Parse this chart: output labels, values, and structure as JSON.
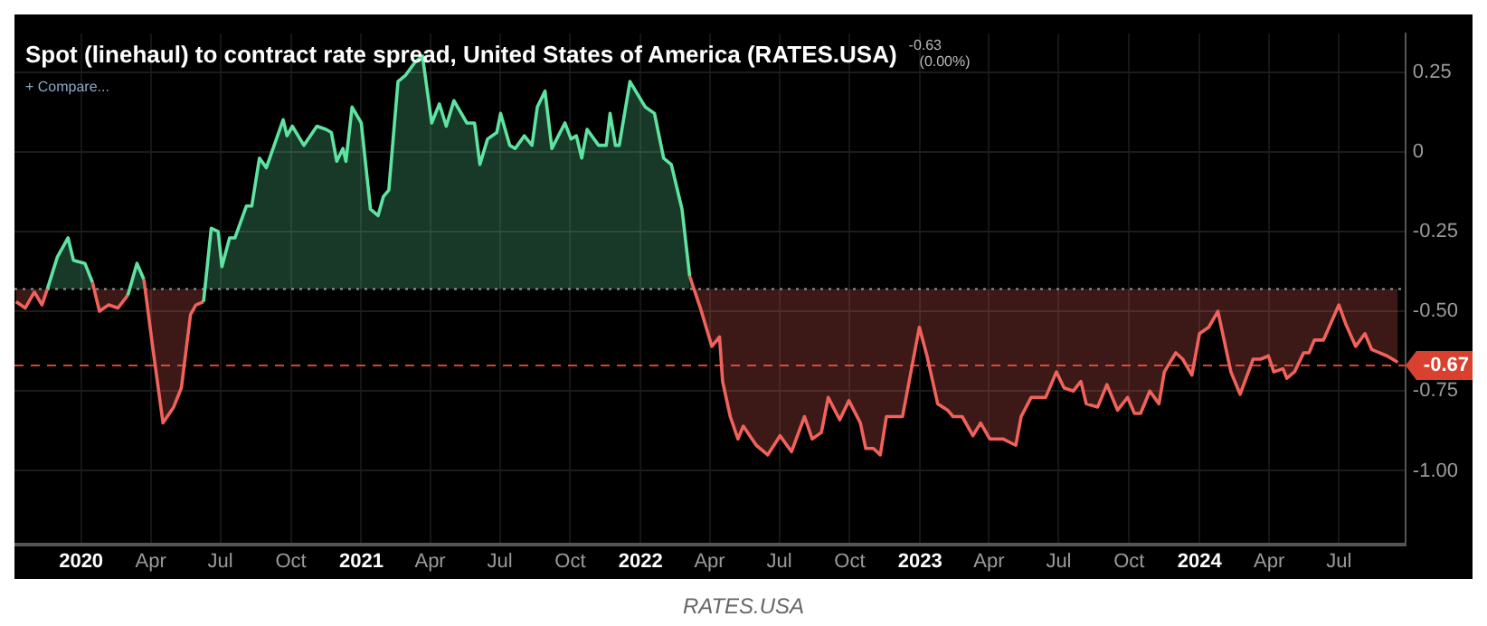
{
  "chart_data": {
    "type": "area",
    "title": "Spot (linehaul) to contract rate spread, United States of America (RATES.USA)",
    "annotations": [
      "-0.63",
      "(0.00%)",
      "+ Compare...",
      "RATES.USA"
    ],
    "x": [
      "2019-10-08",
      "2019-10-20",
      "2019-11-01",
      "2019-11-11",
      "2019-11-18",
      "2019-12-01",
      "2019-12-15",
      "2019-12-22",
      "2020-01-06",
      "2020-01-16",
      "2020-01-25",
      "2020-02-06",
      "2020-02-18",
      "2020-03-02",
      "2020-03-14",
      "2020-03-23",
      "2020-04-04",
      "2020-04-17",
      "2020-05-01",
      "2020-05-11",
      "2020-05-23",
      "2020-05-30",
      "2020-06-09",
      "2020-06-19",
      "2020-06-28",
      "2020-07-03",
      "2020-07-13",
      "2020-07-20",
      "2020-08-04",
      "2020-08-11",
      "2020-08-21",
      "2020-08-30",
      "2020-09-21",
      "2020-09-26",
      "2020-10-03",
      "2020-10-18",
      "2020-11-04",
      "2020-11-16",
      "2020-11-23",
      "2020-11-30",
      "2020-12-08",
      "2020-12-12",
      "2020-12-20",
      "2021-01-01",
      "2021-01-13",
      "2021-01-23",
      "2021-01-30",
      "2021-02-06",
      "2021-02-18",
      "2021-02-28",
      "2021-03-12",
      "2021-03-22",
      "2021-04-03",
      "2021-04-13",
      "2021-04-22",
      "2021-05-02",
      "2021-05-19",
      "2021-05-29",
      "2021-06-05",
      "2021-06-15",
      "2021-06-27",
      "2021-07-02",
      "2021-07-14",
      "2021-07-21",
      "2021-08-02",
      "2021-08-12",
      "2021-08-19",
      "2021-08-29",
      "2021-09-07",
      "2021-09-24",
      "2021-10-02",
      "2021-10-09",
      "2021-10-16",
      "2021-10-23",
      "2021-11-07",
      "2021-11-17",
      "2021-11-22",
      "2021-11-29",
      "2021-12-04",
      "2021-12-18",
      "2022-01-07",
      "2022-01-19",
      "2022-01-31",
      "2022-02-10",
      "2022-02-24",
      "2022-03-06",
      "2022-03-20",
      "2022-04-04",
      "2022-04-14",
      "2022-04-18",
      "2022-04-28",
      "2022-05-08",
      "2022-05-15",
      "2022-06-01",
      "2022-06-16",
      "2022-07-02",
      "2022-07-17",
      "2022-08-03",
      "2022-08-13",
      "2022-08-25",
      "2022-09-03",
      "2022-09-18",
      "2022-09-30",
      "2022-10-15",
      "2022-10-22",
      "2022-11-01",
      "2022-11-10",
      "2022-11-18",
      "2022-12-09",
      "2022-12-31",
      "2023-01-10",
      "2023-01-24",
      "2023-02-06",
      "2023-02-13",
      "2023-02-25",
      "2023-03-11",
      "2023-03-21",
      "2023-04-02",
      "2023-04-19",
      "2023-05-06",
      "2023-05-13",
      "2023-05-26",
      "2023-06-14",
      "2023-06-28",
      "2023-07-08",
      "2023-07-20",
      "2023-07-30",
      "2023-08-06",
      "2023-08-21",
      "2023-09-02",
      "2023-09-16",
      "2023-09-29",
      "2023-10-08",
      "2023-10-16",
      "2023-10-28",
      "2023-11-09",
      "2023-11-16",
      "2023-12-01",
      "2023-12-10",
      "2023-12-22",
      "2024-01-01",
      "2024-01-13",
      "2024-01-25",
      "2024-02-11",
      "2024-02-23",
      "2024-03-11",
      "2024-03-21",
      "2024-03-31",
      "2024-04-07",
      "2024-04-19",
      "2024-04-24",
      "2024-05-04",
      "2024-05-16",
      "2024-05-23",
      "2024-05-30",
      "2024-06-11",
      "2024-07-01",
      "2024-07-10",
      "2024-07-23",
      "2024-08-04",
      "2024-08-13",
      "2024-09-02",
      "2024-09-16"
    ],
    "series": [
      {
        "values": [
          -0.47,
          -0.49,
          -0.44,
          -0.48,
          -0.43,
          -0.33,
          -0.27,
          -0.34,
          -0.35,
          -0.41,
          -0.5,
          -0.48,
          -0.49,
          -0.45,
          -0.35,
          -0.4,
          -0.62,
          -0.85,
          -0.8,
          -0.74,
          -0.51,
          -0.48,
          -0.47,
          -0.24,
          -0.25,
          -0.36,
          -0.27,
          -0.27,
          -0.17,
          -0.17,
          -0.02,
          -0.05,
          0.1,
          0.05,
          0.08,
          0.02,
          0.08,
          0.07,
          0.06,
          -0.03,
          0.01,
          -0.03,
          0.14,
          0.09,
          -0.18,
          -0.2,
          -0.14,
          -0.12,
          0.22,
          0.24,
          0.28,
          0.3,
          0.09,
          0.15,
          0.08,
          0.16,
          0.09,
          0.09,
          -0.04,
          0.04,
          0.06,
          0.12,
          0.02,
          0.01,
          0.05,
          0.02,
          0.14,
          0.19,
          0.01,
          0.09,
          0.04,
          0.05,
          -0.02,
          0.07,
          0.02,
          0.02,
          0.12,
          0.02,
          0.02,
          0.22,
          0.14,
          0.12,
          -0.02,
          -0.04,
          -0.18,
          -0.39,
          -0.49,
          -0.61,
          -0.58,
          -0.72,
          -0.83,
          -0.9,
          -0.86,
          -0.92,
          -0.95,
          -0.89,
          -0.94,
          -0.83,
          -0.9,
          -0.88,
          -0.77,
          -0.84,
          -0.78,
          -0.85,
          -0.93,
          -0.93,
          -0.95,
          -0.83,
          -0.83,
          -0.55,
          -0.64,
          -0.79,
          -0.81,
          -0.83,
          -0.83,
          -0.89,
          -0.85,
          -0.9,
          -0.9,
          -0.92,
          -0.83,
          -0.77,
          -0.77,
          -0.69,
          -0.74,
          -0.75,
          -0.72,
          -0.79,
          -0.8,
          -0.73,
          -0.81,
          -0.77,
          -0.82,
          -0.82,
          -0.75,
          -0.79,
          -0.69,
          -0.63,
          -0.65,
          -0.7,
          -0.57,
          -0.55,
          -0.5,
          -0.69,
          -0.76,
          -0.65,
          -0.65,
          -0.64,
          -0.69,
          -0.68,
          -0.71,
          -0.69,
          -0.63,
          -0.63,
          -0.59,
          -0.59,
          -0.48,
          -0.54,
          -0.61,
          -0.57,
          -0.62,
          -0.64,
          -0.66
        ],
        "colors": [
          "#f0625a",
          "#f0625a",
          "#f0625a",
          "#f0625a",
          "#f0625a",
          "#5fe3a1",
          "#5fe3a1",
          "#5fe3a1",
          "#5fe3a1",
          "#5fe3a1",
          "#f0625a",
          "#f0625a",
          "#f0625a",
          "#f0625a",
          "#5fe3a1",
          "#5fe3a1",
          "#f0625a",
          "#f0625a",
          "#f0625a",
          "#f0625a",
          "#f0625a",
          "#f0625a",
          "#f0625a",
          "#5fe3a1",
          "#5fe3a1",
          "#5fe3a1",
          "#5fe3a1",
          "#5fe3a1",
          "#5fe3a1",
          "#5fe3a1",
          "#5fe3a1",
          "#5fe3a1",
          "#5fe3a1",
          "#5fe3a1",
          "#5fe3a1",
          "#5fe3a1",
          "#5fe3a1",
          "#5fe3a1",
          "#5fe3a1",
          "#5fe3a1",
          "#5fe3a1",
          "#5fe3a1",
          "#5fe3a1",
          "#5fe3a1",
          "#5fe3a1",
          "#5fe3a1",
          "#5fe3a1",
          "#5fe3a1",
          "#5fe3a1",
          "#5fe3a1",
          "#5fe3a1",
          "#5fe3a1",
          "#5fe3a1",
          "#5fe3a1",
          "#5fe3a1",
          "#5fe3a1",
          "#5fe3a1",
          "#5fe3a1",
          "#5fe3a1",
          "#5fe3a1",
          "#5fe3a1",
          "#5fe3a1",
          "#5fe3a1",
          "#5fe3a1",
          "#5fe3a1",
          "#5fe3a1",
          "#5fe3a1",
          "#5fe3a1",
          "#5fe3a1",
          "#5fe3a1",
          "#5fe3a1",
          "#5fe3a1",
          "#5fe3a1",
          "#5fe3a1",
          "#5fe3a1",
          "#5fe3a1",
          "#5fe3a1",
          "#5fe3a1",
          "#5fe3a1",
          "#5fe3a1",
          "#5fe3a1",
          "#5fe3a1",
          "#5fe3a1",
          "#5fe3a1",
          "#5fe3a1",
          "#5fe3a1",
          "#f0625a",
          "#f0625a",
          "#f0625a",
          "#f0625a",
          "#f0625a",
          "#f0625a",
          "#f0625a",
          "#f0625a",
          "#f0625a",
          "#f0625a",
          "#f0625a",
          "#f0625a",
          "#f0625a",
          "#f0625a",
          "#f0625a",
          "#f0625a",
          "#f0625a",
          "#f0625a",
          "#f0625a",
          "#f0625a",
          "#f0625a",
          "#f0625a",
          "#f0625a",
          "#f0625a",
          "#f0625a",
          "#f0625a",
          "#f0625a",
          "#f0625a",
          "#f0625a",
          "#f0625a",
          "#f0625a",
          "#f0625a",
          "#f0625a",
          "#f0625a",
          "#f0625a",
          "#f0625a",
          "#f0625a",
          "#f0625a",
          "#f0625a",
          "#f0625a",
          "#f0625a",
          "#f0625a",
          "#f0625a",
          "#f0625a",
          "#f0625a",
          "#f0625a",
          "#f0625a",
          "#f0625a",
          "#f0625a",
          "#f0625a",
          "#f0625a",
          "#f0625a",
          "#f0625a",
          "#f0625a",
          "#f0625a",
          "#f0625a",
          "#f0625a",
          "#f0625a",
          "#f0625a",
          "#f0625a",
          "#f0625a",
          "#f0625a",
          "#f0625a",
          "#f0625a",
          "#f0625a",
          "#f0625a",
          "#f0625a",
          "#f0625a",
          "#f0625a",
          "#f0625a",
          "#f0625a",
          "#f0625a",
          "#f0625a",
          "#f0625a",
          "#f0625a",
          "#f0625a",
          "#f0625a"
        ]
      }
    ],
    "xlim": [
      "2019-10-06",
      "2024-09-26"
    ],
    "xticks": [
      {
        "value": "2020-01-01",
        "label": "2020"
      },
      {
        "value": "2020-04-01",
        "label": "Apr"
      },
      {
        "value": "2020-07-01",
        "label": "Jul"
      },
      {
        "value": "2020-10-01",
        "label": "Oct"
      },
      {
        "value": "2021-01-01",
        "label": "2021"
      },
      {
        "value": "2021-04-01",
        "label": "Apr"
      },
      {
        "value": "2021-07-01",
        "label": "Jul"
      },
      {
        "value": "2021-10-01",
        "label": "Oct"
      },
      {
        "value": "2022-01-01",
        "label": "2022"
      },
      {
        "value": "2022-04-01",
        "label": "Apr"
      },
      {
        "value": "2022-07-01",
        "label": "Jul"
      },
      {
        "value": "2022-10-01",
        "label": "Oct"
      },
      {
        "value": "2023-01-01",
        "label": "2023"
      },
      {
        "value": "2023-04-01",
        "label": "Apr"
      },
      {
        "value": "2023-07-01",
        "label": "Jul"
      },
      {
        "value": "2023-10-01",
        "label": "Oct"
      },
      {
        "value": "2024-01-01",
        "label": "2024"
      },
      {
        "value": "2024-04-01",
        "label": "Apr"
      },
      {
        "value": "2024-07-01",
        "label": "Jul"
      }
    ],
    "ylim": [
      -1.23,
      0.37
    ],
    "yticks": [
      0.25,
      0,
      -0.25,
      {
        "value": -0.5,
        "label": "-0.50"
      },
      -0.75,
      {
        "value": -1,
        "label": "-1.00"
      }
    ],
    "ref_lines": [
      {
        "axis": "y",
        "value": -0.43,
        "color": "#9a9a9a",
        "line_style": "dotted"
      },
      {
        "axis": "y",
        "value": -0.67,
        "label": "-0.67",
        "color": "#d9412e",
        "line_style": "dashed"
      }
    ],
    "grid": true,
    "legend": false,
    "marker": "none"
  }
}
